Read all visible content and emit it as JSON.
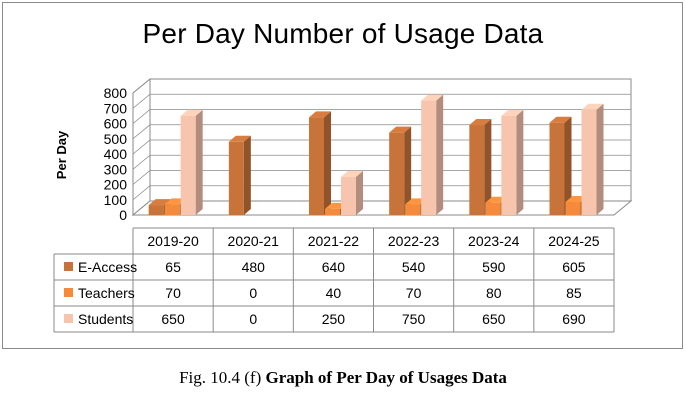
{
  "chart_data": {
    "type": "bar",
    "title": "Per Day Number of Usage Data",
    "ylabel": "Per Day",
    "xlabel": "",
    "categories": [
      "2019-20",
      "2020-21",
      "2021-22",
      "2022-23",
      "2023-24",
      "2024-25"
    ],
    "series": [
      {
        "name": "E-Access",
        "values": [
          65,
          480,
          640,
          540,
          590,
          605
        ],
        "color": "#c8733a"
      },
      {
        "name": "Teachers",
        "values": [
          70,
          0,
          40,
          70,
          80,
          85
        ],
        "color": "#f48a3a"
      },
      {
        "name": "Students",
        "values": [
          650,
          0,
          250,
          750,
          650,
          690
        ],
        "color": "#f7c4ad"
      }
    ],
    "ylim": [
      0,
      800
    ],
    "yticks": [
      0,
      100,
      200,
      300,
      400,
      500,
      600,
      700,
      800
    ],
    "table_values": [
      [
        "65",
        "480",
        "640",
        "540",
        "590",
        "605"
      ],
      [
        "70",
        "0",
        "40",
        "70",
        "80",
        "85"
      ],
      [
        "650",
        "0",
        "250",
        "750",
        "650",
        "690"
      ]
    ],
    "grid": true,
    "three_d": true,
    "legend": "data-table"
  },
  "caption": {
    "prefix": "Fig. 10.4 (f)",
    "text": "Graph of Per Day of Usages Data"
  }
}
